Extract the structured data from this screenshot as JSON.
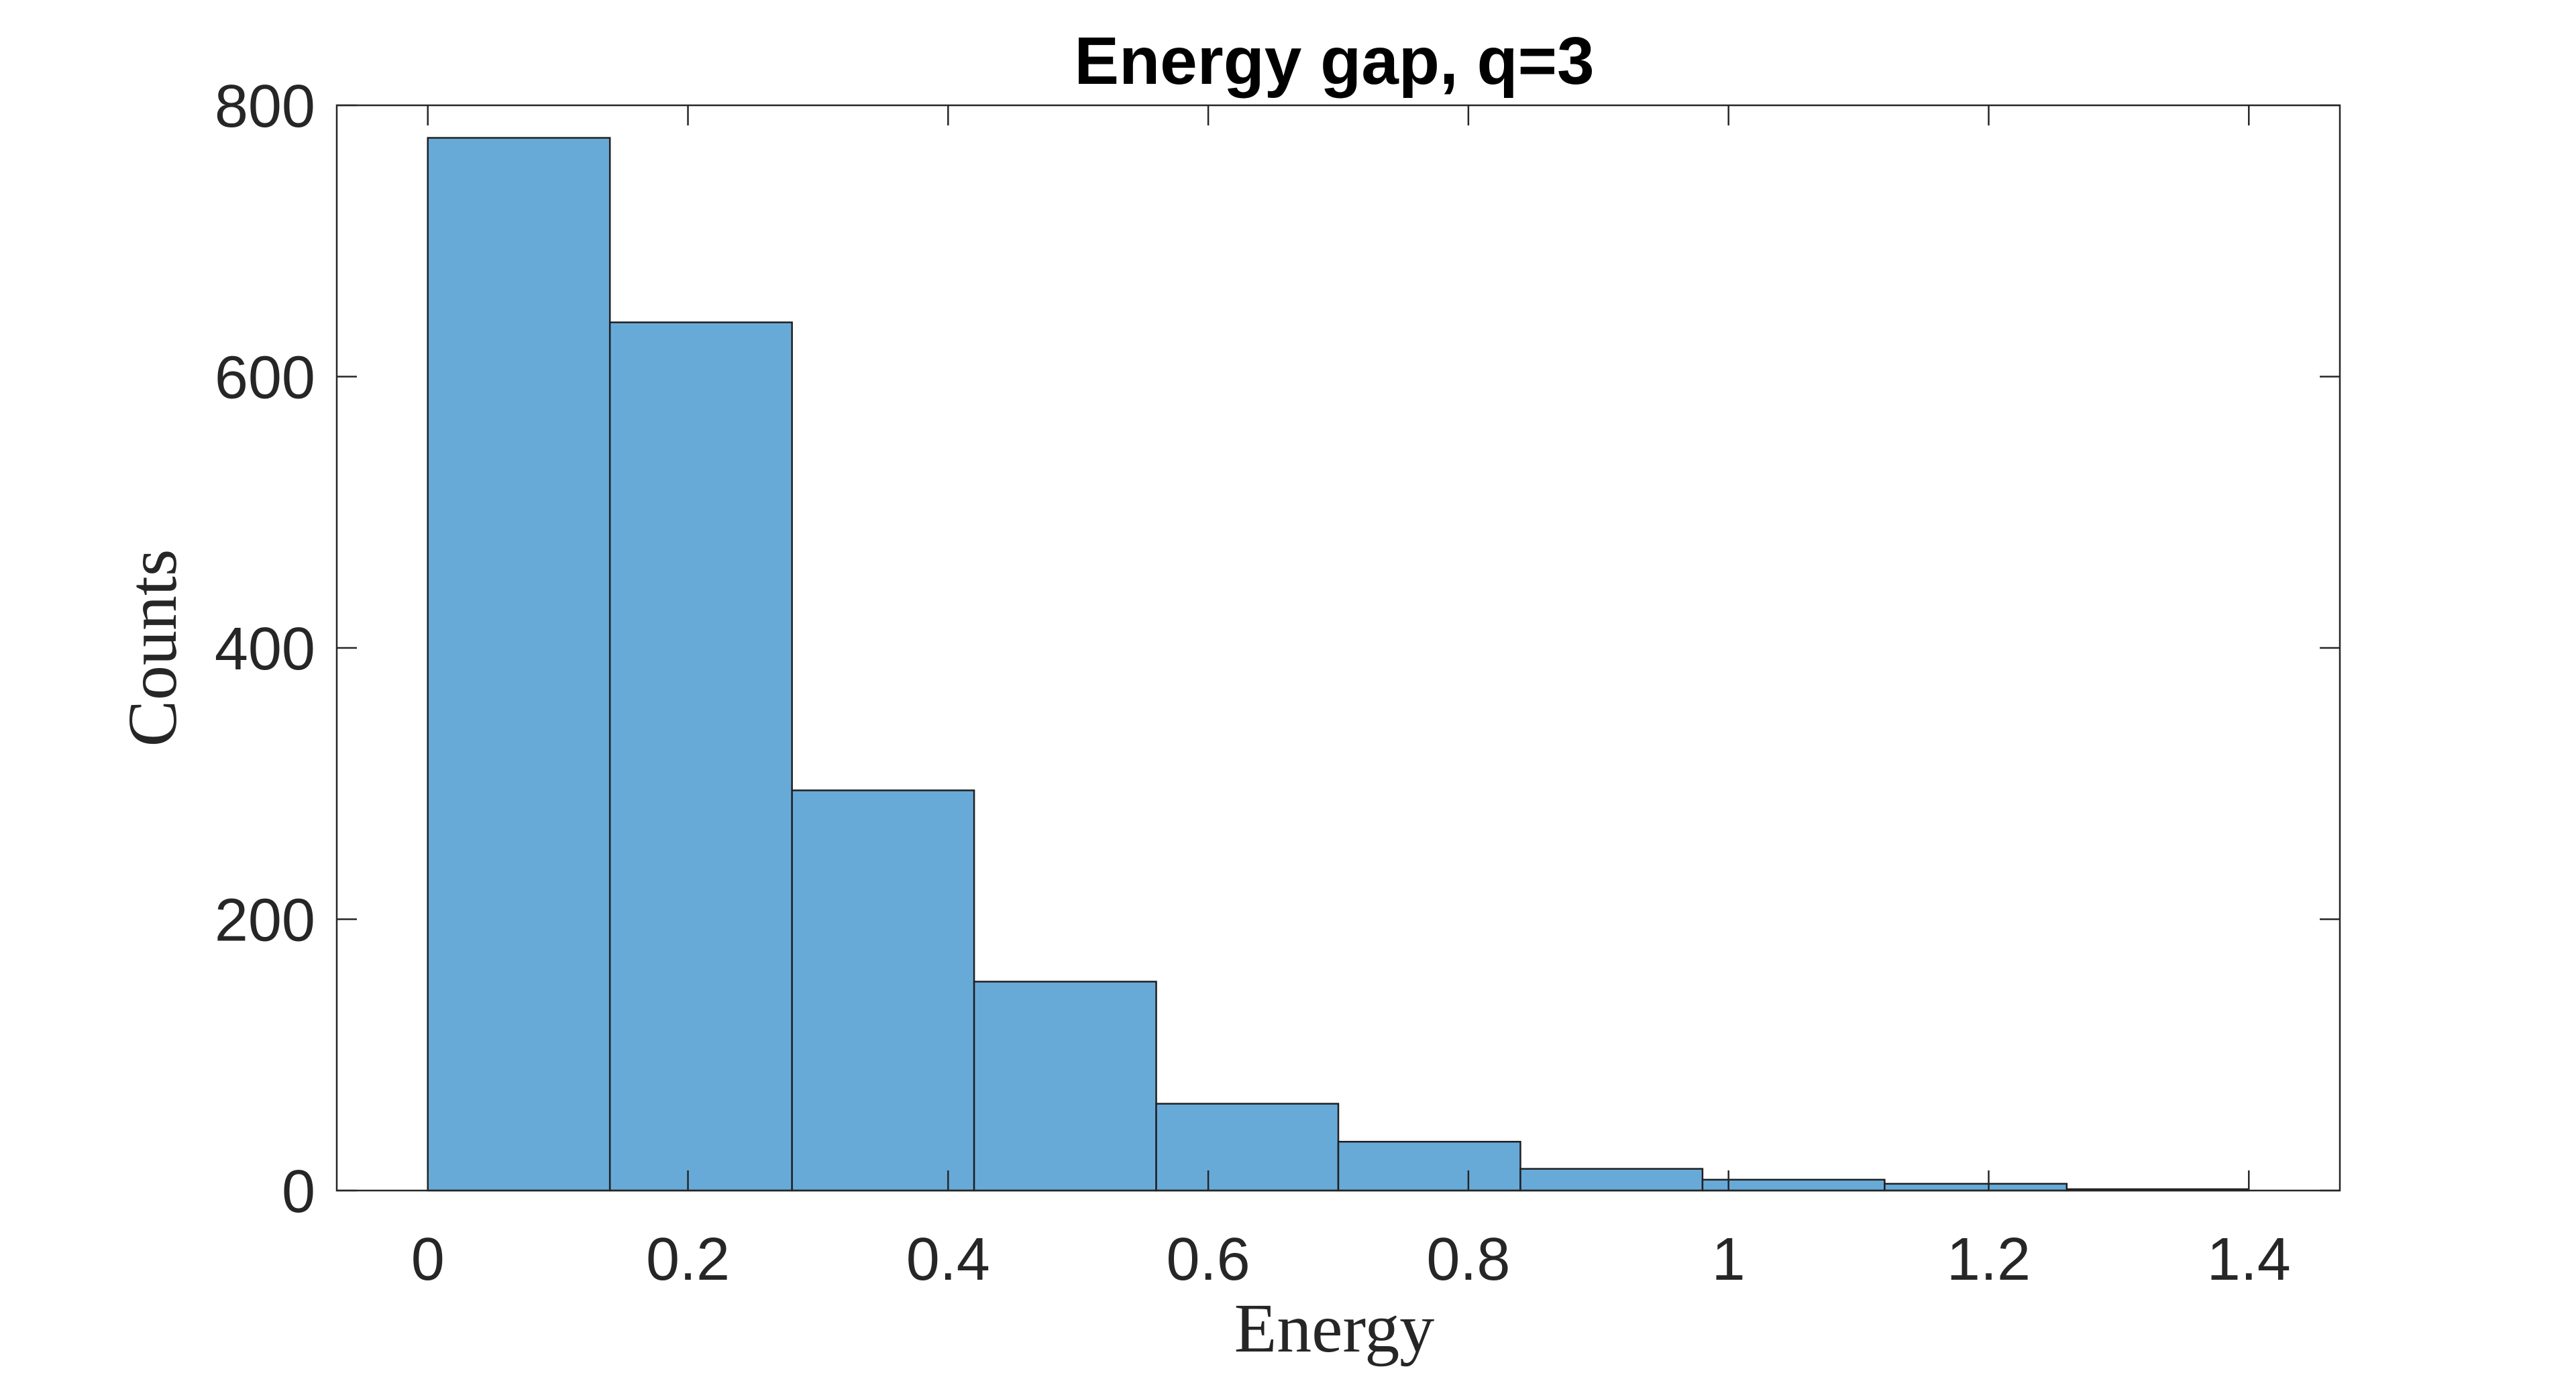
{
  "chart_data": {
    "type": "bar",
    "title": "Energy gap, q=3",
    "xlabel": "Energy",
    "ylabel": "Counts",
    "bin_edges": [
      0,
      0.14,
      0.28,
      0.42,
      0.56,
      0.7,
      0.84,
      0.98,
      1.12,
      1.26,
      1.4
    ],
    "values": [
      776,
      640,
      295,
      154,
      64,
      36,
      16,
      8,
      5,
      1
    ],
    "xlim": [
      -0.07,
      1.47
    ],
    "ylim": [
      0,
      800
    ],
    "xticks": [
      0,
      0.2,
      0.4,
      0.6,
      0.8,
      1,
      1.2,
      1.4
    ],
    "xtick_labels": [
      "0",
      "0.2",
      "0.4",
      "0.6",
      "0.8",
      "1",
      "1.2",
      "1.4"
    ],
    "yticks": [
      0,
      200,
      400,
      600,
      800
    ],
    "ytick_labels": [
      "0",
      "200",
      "400",
      "600",
      "800"
    ],
    "grid": false,
    "bar_color": "#67aad8",
    "edge_color": "#1f1f1f"
  }
}
